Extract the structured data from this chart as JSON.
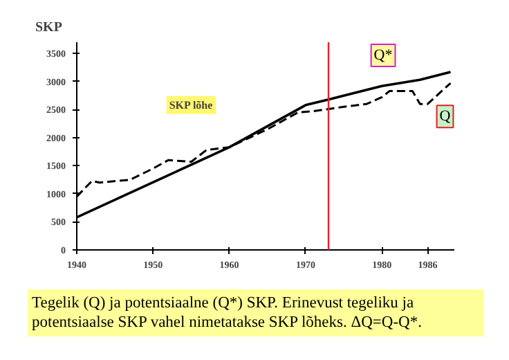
{
  "chart_data": {
    "type": "line",
    "ylabel": "SKP",
    "xlim": [
      1940,
      1989.5
    ],
    "xticks": [
      1940,
      1950,
      1960,
      1970,
      1980,
      1986
    ],
    "ylim": [
      0,
      3700
    ],
    "yticks": [
      0,
      500,
      1000,
      1500,
      2000,
      2500,
      3000,
      3500
    ],
    "grid": false,
    "series": [
      {
        "name": "Q*",
        "color": "#000000",
        "line_style": "solid",
        "x": [
          1940,
          1960,
          1970,
          1973,
          1980,
          1985,
          1989
        ],
        "values": [
          580,
          1830,
          2580,
          2680,
          2920,
          3030,
          3170
        ]
      },
      {
        "name": "Q",
        "color": "#000000",
        "line_style": "dashed",
        "x": [
          1940,
          1942,
          1943,
          1947,
          1950,
          1952,
          1955,
          1957,
          1960,
          1965,
          1969,
          1971,
          1975,
          1978,
          1980,
          1981,
          1984,
          1985,
          1986,
          1988,
          1989
        ],
        "values": [
          950,
          1230,
          1200,
          1250,
          1450,
          1600,
          1570,
          1780,
          1830,
          2150,
          2450,
          2470,
          2550,
          2600,
          2720,
          2830,
          2830,
          2600,
          2600,
          2850,
          2970
        ]
      }
    ],
    "ref_lines": [
      {
        "axis": "x",
        "value": 1973,
        "color": "#e8202a"
      }
    ],
    "annotations": [
      {
        "text": "SKP lõhe",
        "x": 1955,
        "y": 2580
      },
      "Tegelik (Q) ja potentsiaalne (Q*) SKP. Erinevust tegeliku ja potentsiaalse SKP vahel nimetatakse SKP lõheks.    ΔQ=Q-Q*."
    ]
  }
}
